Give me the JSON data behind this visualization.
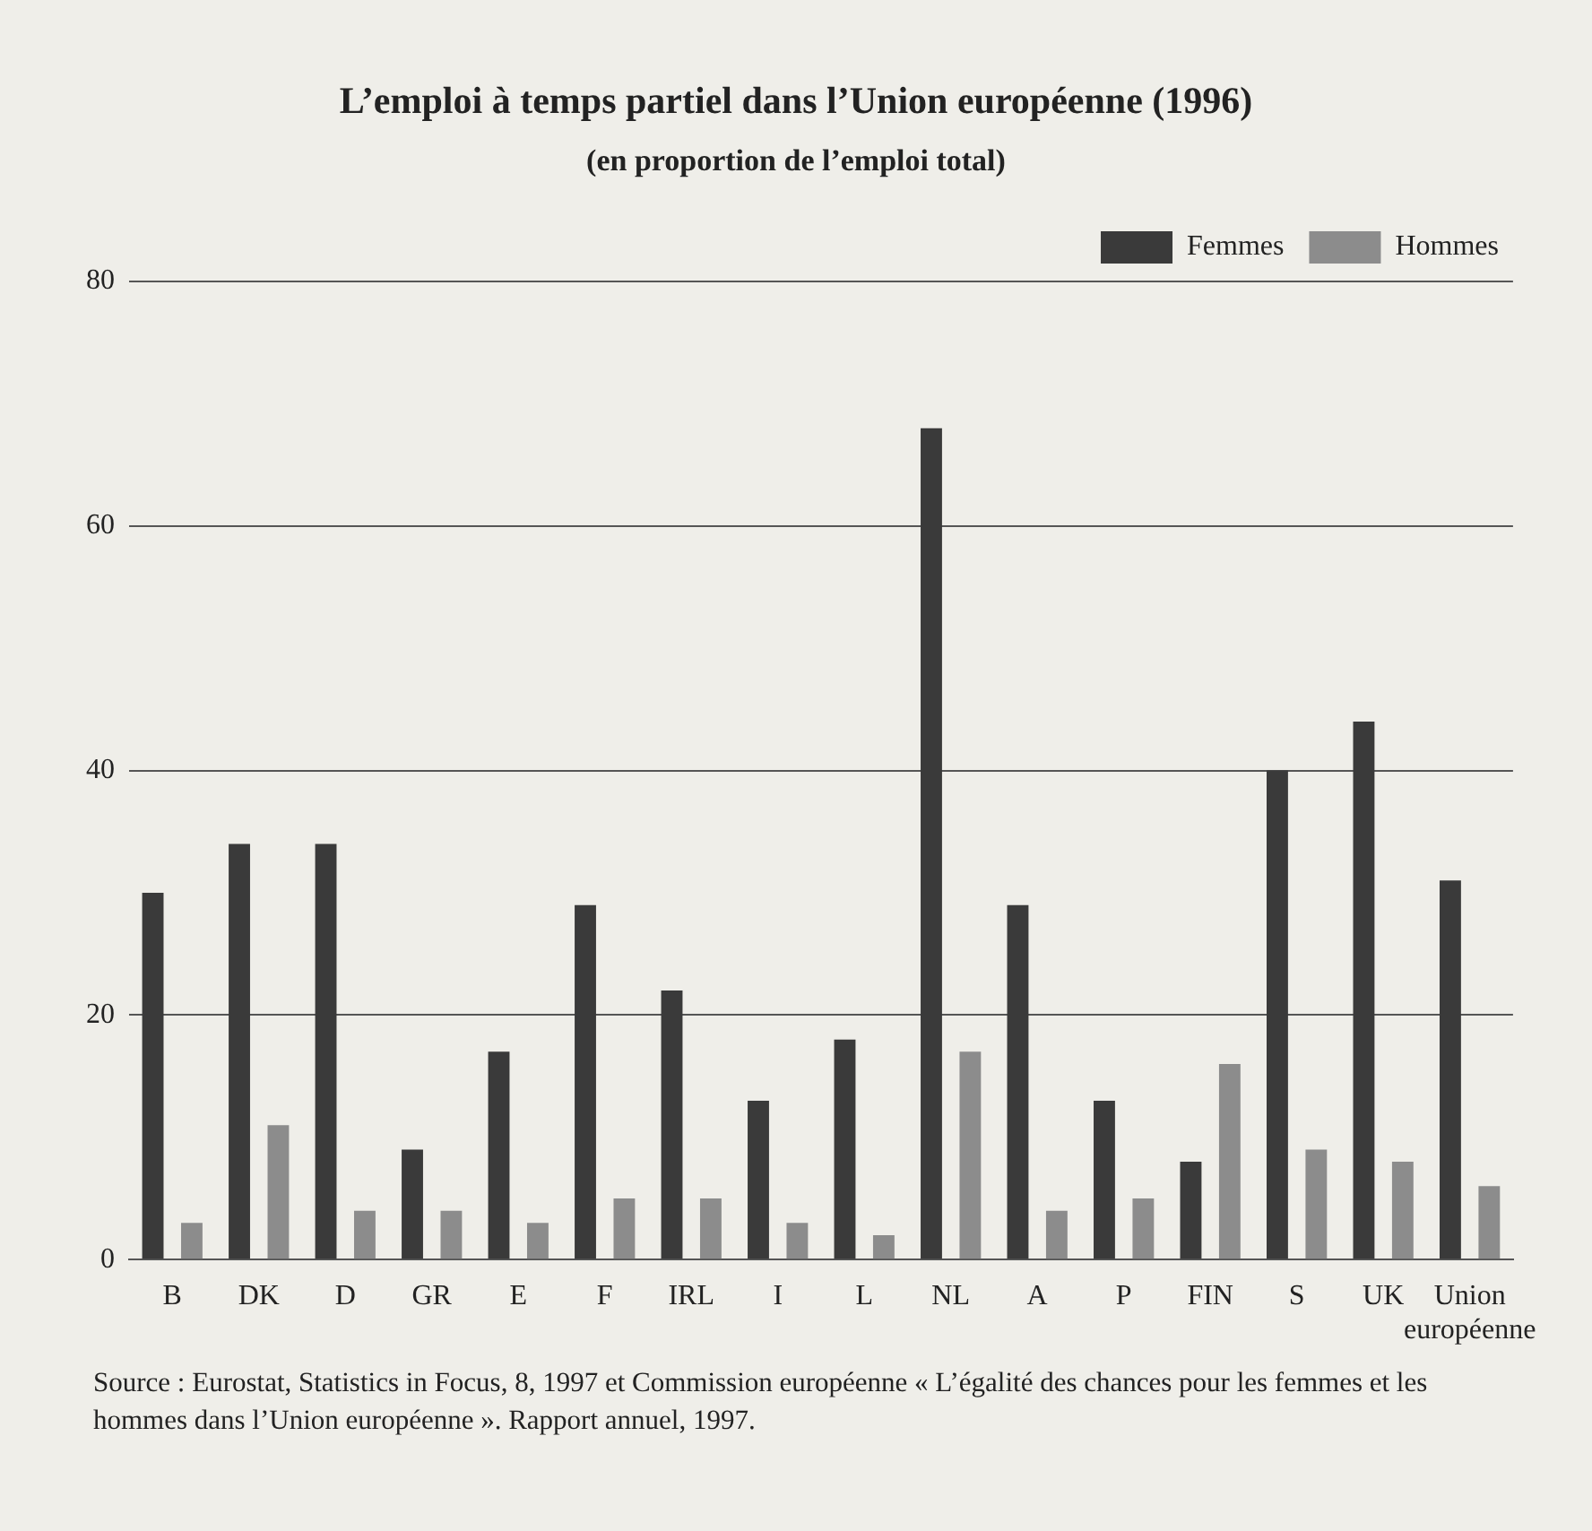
{
  "chart_data": {
    "type": "bar",
    "title": "L’emploi à temps partiel dans l’Union européenne (1996)",
    "subtitle": "(en proportion de l’emploi total)",
    "categories": [
      "B",
      "DK",
      "D",
      "GR",
      "E",
      "F",
      "IRL",
      "I",
      "L",
      "NL",
      "A",
      "P",
      "FIN",
      "S",
      "UK",
      "Union européenne"
    ],
    "series": [
      {
        "name": "Femmes",
        "color": "#3a3a3a",
        "values": [
          30,
          34,
          34,
          9,
          17,
          29,
          22,
          13,
          18,
          68,
          29,
          13,
          8,
          40,
          44,
          31
        ]
      },
      {
        "name": "Hommes",
        "color": "#8c8c8c",
        "values": [
          3,
          11,
          4,
          4,
          3,
          5,
          5,
          3,
          2,
          17,
          4,
          5,
          16,
          9,
          8,
          6
        ]
      }
    ],
    "ylim": [
      0,
      80
    ],
    "yticks": [
      0,
      20,
      40,
      60,
      80
    ],
    "grid": "y",
    "legend": "top right",
    "annotations": [
      "Source : Eurostat, Statistics in Focus, 8, 1997 et Commission européenne « L’égalité des chances pour les femmes et les hommes dans l’Union européenne ». Rapport annuel, 1997."
    ]
  }
}
